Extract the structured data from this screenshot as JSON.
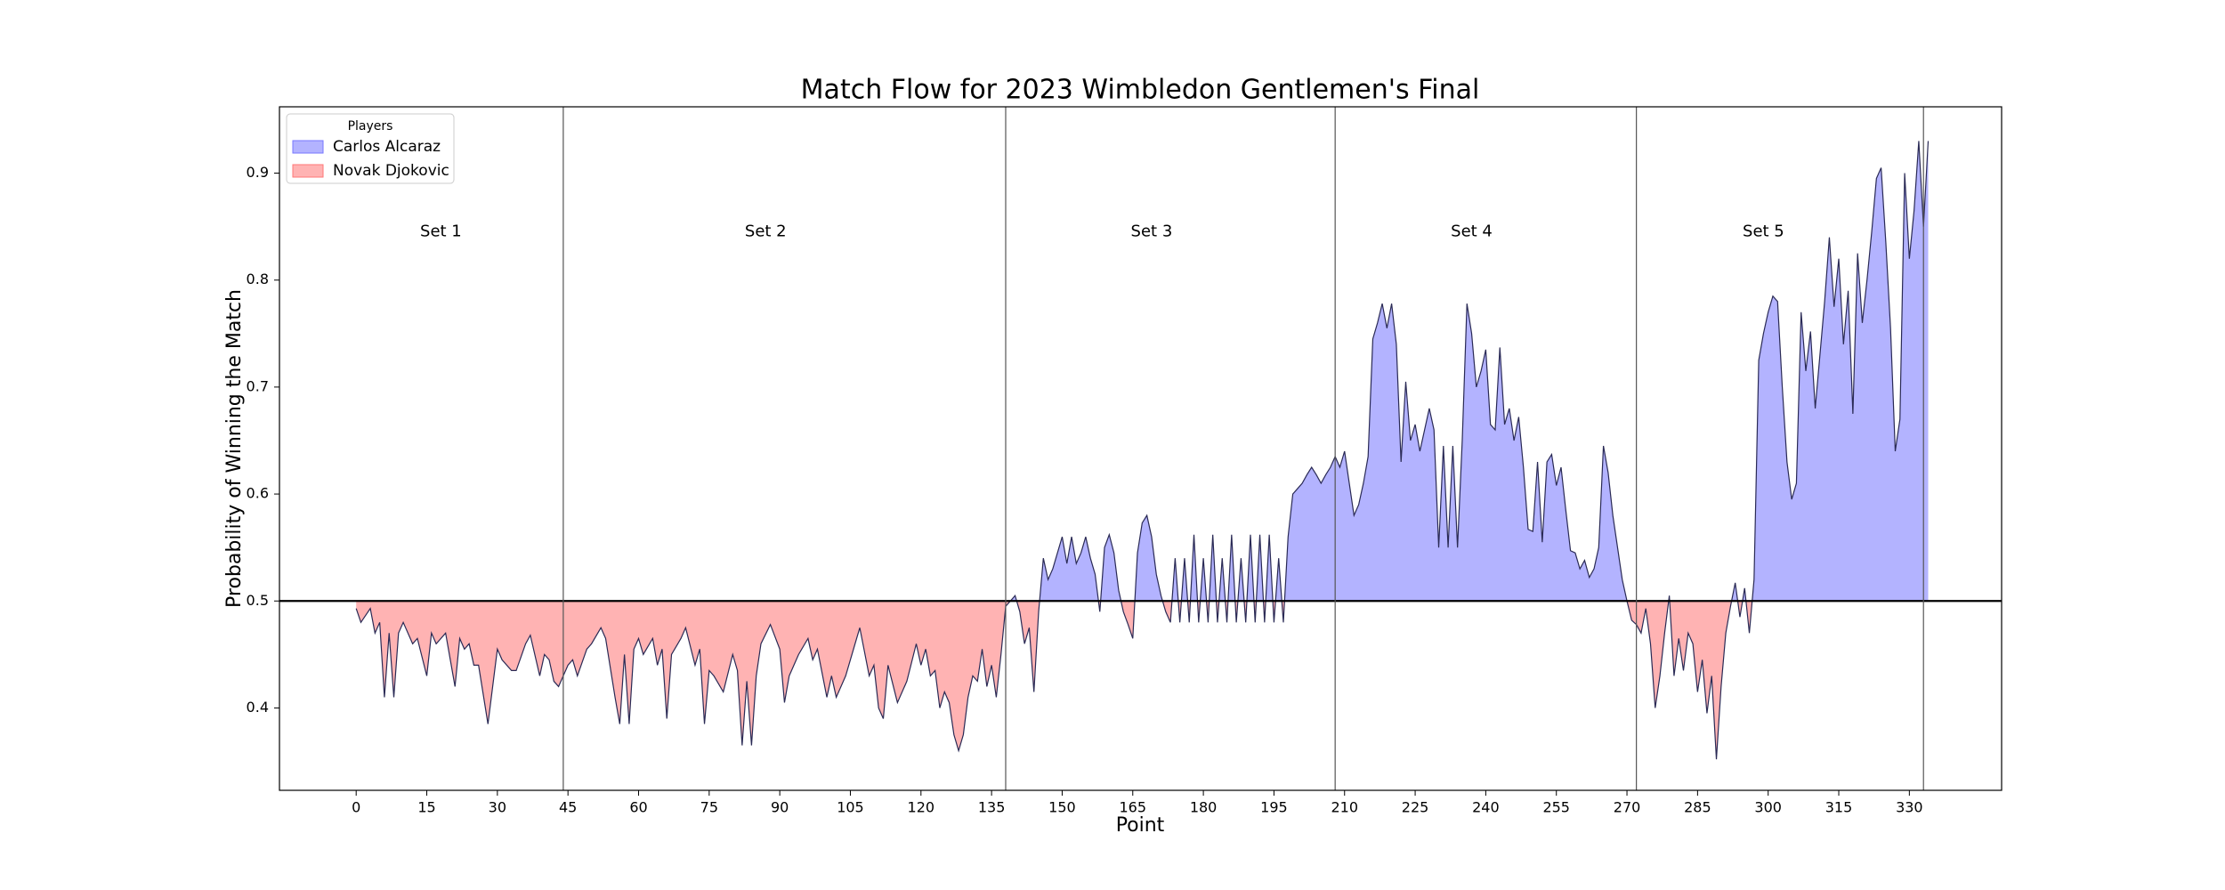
{
  "chart_data": {
    "type": "area-threshold",
    "title": "Match Flow for 2023 Wimbledon Gentlemen's Final",
    "xlabel": "Point",
    "ylabel": "Probability of Winning the Match",
    "legend_title": "Players",
    "legend": "upper left",
    "line_color": "#2a2a55",
    "threshold": 0.5,
    "series": [
      {
        "name": "Carlos Alcaraz",
        "color": "#b3b3ff"
      },
      {
        "name": "Novak Djokovic",
        "color": "#ffb3b3"
      }
    ],
    "set_boundaries": [
      44,
      138,
      208,
      272,
      333
    ],
    "annotations": [
      {
        "text": "Set 1",
        "x": 18,
        "y": 0.845
      },
      {
        "text": "Set 2",
        "x": 87,
        "y": 0.845
      },
      {
        "text": "Set 3",
        "x": 169,
        "y": 0.845
      },
      {
        "text": "Set 4",
        "x": 237,
        "y": 0.845
      },
      {
        "text": "Set 5",
        "x": 299,
        "y": 0.845
      }
    ],
    "xlim": [
      -16.3,
      349.6
    ],
    "ylim": [
      0.323,
      0.962
    ],
    "xticks": [
      0,
      15,
      30,
      45,
      60,
      75,
      90,
      105,
      120,
      135,
      150,
      165,
      180,
      195,
      210,
      225,
      240,
      255,
      270,
      285,
      300,
      315,
      330
    ],
    "yticks": [
      0.4,
      0.5,
      0.6,
      0.7,
      0.8,
      0.9
    ],
    "x": [
      0,
      1,
      3,
      4,
      5,
      6,
      7,
      8,
      9,
      10,
      12,
      13,
      15,
      16,
      17,
      19,
      21,
      22,
      23,
      24,
      25,
      26,
      28,
      30,
      31,
      33,
      34,
      36,
      37,
      39,
      40,
      41,
      42,
      43,
      45,
      46,
      47,
      49,
      50,
      52,
      53,
      55,
      56,
      57,
      58,
      59,
      60,
      61,
      63,
      64,
      65,
      66,
      67,
      69,
      70,
      72,
      73,
      74,
      75,
      76,
      78,
      80,
      81,
      82,
      83,
      84,
      85,
      86,
      88,
      90,
      91,
      92,
      94,
      96,
      97,
      98,
      100,
      101,
      102,
      104,
      106,
      107,
      109,
      110,
      111,
      112,
      113,
      115,
      117,
      119,
      120,
      121,
      122,
      123,
      124,
      125,
      126,
      127,
      128,
      129,
      130,
      131,
      132,
      133,
      134,
      135,
      136,
      137,
      138,
      139,
      140,
      141,
      142,
      143,
      144,
      145,
      146,
      147,
      148,
      149,
      150,
      151,
      152,
      153,
      154,
      155,
      156,
      157,
      158,
      159,
      160,
      161,
      162,
      163,
      164,
      165,
      166,
      167,
      168,
      169,
      170,
      171,
      172,
      173,
      174,
      175,
      176,
      177,
      178,
      179,
      180,
      181,
      182,
      183,
      184,
      185,
      186,
      187,
      188,
      189,
      190,
      191,
      192,
      193,
      194,
      195,
      196,
      197,
      198,
      199,
      200,
      201,
      202,
      203,
      204,
      205,
      206,
      207,
      208,
      209,
      210,
      211,
      212,
      213,
      214,
      215,
      216,
      217,
      218,
      219,
      220,
      221,
      222,
      223,
      224,
      225,
      226,
      227,
      228,
      229,
      230,
      231,
      232,
      233,
      234,
      235,
      236,
      237,
      238,
      239,
      240,
      241,
      242,
      243,
      244,
      245,
      246,
      247,
      248,
      249,
      250,
      251,
      252,
      253,
      254,
      255,
      256,
      257,
      258,
      259,
      260,
      261,
      262,
      263,
      264,
      265,
      266,
      267,
      268,
      269,
      270,
      271,
      272,
      273,
      274,
      275,
      276,
      277,
      278,
      279,
      280,
      281,
      282,
      283,
      284,
      285,
      286,
      287,
      288,
      289,
      290,
      291,
      292,
      293,
      294,
      295,
      296,
      297,
      298,
      299,
      300,
      301,
      302,
      303,
      304,
      305,
      306,
      307,
      308,
      309,
      310,
      311,
      312,
      313,
      314,
      315,
      316,
      317,
      318,
      319,
      320,
      321,
      322,
      323,
      324,
      325,
      326,
      327,
      328,
      329,
      330,
      331,
      332,
      333,
      334
    ],
    "values": [
      0.493,
      0.48,
      0.493,
      0.47,
      0.48,
      0.41,
      0.47,
      0.41,
      0.47,
      0.48,
      0.46,
      0.465,
      0.43,
      0.47,
      0.46,
      0.47,
      0.42,
      0.465,
      0.455,
      0.46,
      0.44,
      0.44,
      0.385,
      0.455,
      0.445,
      0.435,
      0.435,
      0.46,
      0.468,
      0.43,
      0.45,
      0.445,
      0.425,
      0.42,
      0.44,
      0.445,
      0.43,
      0.455,
      0.46,
      0.475,
      0.465,
      0.41,
      0.385,
      0.45,
      0.385,
      0.455,
      0.465,
      0.45,
      0.465,
      0.44,
      0.455,
      0.39,
      0.45,
      0.465,
      0.475,
      0.44,
      0.455,
      0.385,
      0.435,
      0.43,
      0.415,
      0.45,
      0.435,
      0.365,
      0.425,
      0.365,
      0.43,
      0.46,
      0.478,
      0.455,
      0.405,
      0.43,
      0.45,
      0.465,
      0.445,
      0.455,
      0.41,
      0.43,
      0.41,
      0.43,
      0.46,
      0.475,
      0.43,
      0.44,
      0.4,
      0.39,
      0.44,
      0.405,
      0.425,
      0.46,
      0.44,
      0.455,
      0.43,
      0.435,
      0.4,
      0.415,
      0.405,
      0.375,
      0.36,
      0.375,
      0.41,
      0.43,
      0.425,
      0.455,
      0.42,
      0.44,
      0.41,
      0.45,
      0.495,
      0.5,
      0.505,
      0.49,
      0.46,
      0.475,
      0.415,
      0.49,
      0.54,
      0.52,
      0.53,
      0.545,
      0.56,
      0.535,
      0.56,
      0.535,
      0.545,
      0.56,
      0.54,
      0.525,
      0.49,
      0.55,
      0.562,
      0.545,
      0.51,
      0.49,
      0.478,
      0.465,
      0.545,
      0.573,
      0.58,
      0.56,
      0.525,
      0.505,
      0.49,
      0.48,
      0.54,
      0.48,
      0.54,
      0.48,
      0.562,
      0.48,
      0.54,
      0.48,
      0.562,
      0.48,
      0.54,
      0.48,
      0.562,
      0.48,
      0.54,
      0.48,
      0.562,
      0.48,
      0.562,
      0.48,
      0.562,
      0.48,
      0.54,
      0.48,
      0.56,
      0.6,
      0.605,
      0.61,
      0.618,
      0.625,
      0.618,
      0.61,
      0.618,
      0.625,
      0.635,
      0.625,
      0.64,
      0.61,
      0.58,
      0.59,
      0.61,
      0.635,
      0.745,
      0.76,
      0.778,
      0.755,
      0.778,
      0.74,
      0.63,
      0.705,
      0.65,
      0.665,
      0.64,
      0.66,
      0.68,
      0.66,
      0.55,
      0.645,
      0.55,
      0.645,
      0.55,
      0.65,
      0.778,
      0.75,
      0.7,
      0.715,
      0.735,
      0.665,
      0.66,
      0.737,
      0.665,
      0.68,
      0.65,
      0.672,
      0.625,
      0.567,
      0.565,
      0.63,
      0.555,
      0.63,
      0.637,
      0.608,
      0.625,
      0.585,
      0.547,
      0.545,
      0.53,
      0.538,
      0.522,
      0.53,
      0.55,
      0.645,
      0.62,
      0.58,
      0.55,
      0.52,
      0.5,
      0.482,
      0.478,
      0.47,
      0.493,
      0.46,
      0.4,
      0.43,
      0.47,
      0.505,
      0.43,
      0.465,
      0.435,
      0.47,
      0.46,
      0.415,
      0.445,
      0.395,
      0.43,
      0.352,
      0.42,
      0.47,
      0.495,
      0.517,
      0.485,
      0.512,
      0.47,
      0.52,
      0.725,
      0.75,
      0.77,
      0.785,
      0.78,
      0.7,
      0.63,
      0.595,
      0.61,
      0.77,
      0.715,
      0.752,
      0.68,
      0.73,
      0.78,
      0.84,
      0.775,
      0.82,
      0.74,
      0.79,
      0.675,
      0.825,
      0.76,
      0.8,
      0.845,
      0.895,
      0.905,
      0.835,
      0.755,
      0.64,
      0.67,
      0.9,
      0.82,
      0.865,
      0.93,
      0.85,
      0.93
    ]
  }
}
